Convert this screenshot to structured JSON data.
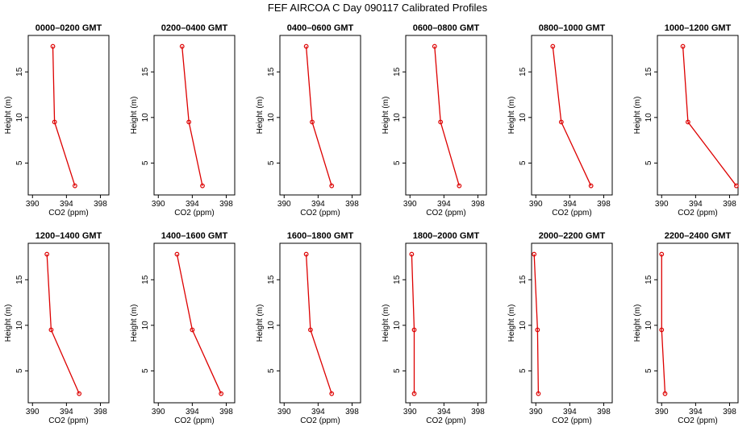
{
  "title": "FEF AIRCOA C  Day 090117  Calibrated Profiles",
  "colors": {
    "series": "#dd0000",
    "axis": "#000000"
  },
  "chart_data": [
    {
      "type": "line",
      "title": "0000–0200 GMT",
      "xlabel": "CO2 (ppm)",
      "ylabel": "Height (m)",
      "xlim": [
        389.5,
        399
      ],
      "ylim": [
        1.5,
        19
      ],
      "xticks": [
        390,
        394,
        398
      ],
      "yticks": [
        5,
        10,
        15
      ],
      "x": [
        395.0,
        392.6,
        392.4
      ],
      "y": [
        2.5,
        9.5,
        17.8
      ]
    },
    {
      "type": "line",
      "title": "0200–0400 GMT",
      "xlabel": "CO2 (ppm)",
      "ylabel": "Height (m)",
      "xlim": [
        389.5,
        399
      ],
      "ylim": [
        1.5,
        19
      ],
      "xticks": [
        390,
        394,
        398
      ],
      "yticks": [
        5,
        10,
        15
      ],
      "x": [
        395.2,
        393.6,
        392.8
      ],
      "y": [
        2.5,
        9.5,
        17.8
      ]
    },
    {
      "type": "line",
      "title": "0400–0600 GMT",
      "xlabel": "CO2 (ppm)",
      "ylabel": "Height (m)",
      "xlim": [
        389.5,
        399
      ],
      "ylim": [
        1.5,
        19
      ],
      "xticks": [
        390,
        394,
        398
      ],
      "yticks": [
        5,
        10,
        15
      ],
      "x": [
        395.6,
        393.3,
        392.6
      ],
      "y": [
        2.5,
        9.5,
        17.8
      ]
    },
    {
      "type": "line",
      "title": "0600–0800 GMT",
      "xlabel": "CO2 (ppm)",
      "ylabel": "Height (m)",
      "xlim": [
        389.5,
        399
      ],
      "ylim": [
        1.5,
        19
      ],
      "xticks": [
        390,
        394,
        398
      ],
      "yticks": [
        5,
        10,
        15
      ],
      "x": [
        395.8,
        393.6,
        392.9
      ],
      "y": [
        2.5,
        9.5,
        17.8
      ]
    },
    {
      "type": "line",
      "title": "0800–1000 GMT",
      "xlabel": "CO2 (ppm)",
      "ylabel": "Height (m)",
      "xlim": [
        389.5,
        399
      ],
      "ylim": [
        1.5,
        19
      ],
      "xticks": [
        390,
        394,
        398
      ],
      "yticks": [
        5,
        10,
        15
      ],
      "x": [
        396.5,
        393.0,
        392.0
      ],
      "y": [
        2.5,
        9.5,
        17.8
      ]
    },
    {
      "type": "line",
      "title": "1000–1200 GMT",
      "xlabel": "CO2 (ppm)",
      "ylabel": "Height (m)",
      "xlim": [
        389.5,
        399
      ],
      "ylim": [
        1.5,
        19
      ],
      "xticks": [
        390,
        394,
        398
      ],
      "yticks": [
        5,
        10,
        15
      ],
      "x": [
        398.8,
        393.1,
        392.5
      ],
      "y": [
        2.5,
        9.5,
        17.8
      ]
    },
    {
      "type": "line",
      "title": "1200–1400 GMT",
      "xlabel": "CO2 (ppm)",
      "ylabel": "Height (m)",
      "xlim": [
        389.5,
        399
      ],
      "ylim": [
        1.5,
        19
      ],
      "xticks": [
        390,
        394,
        398
      ],
      "yticks": [
        5,
        10,
        15
      ],
      "x": [
        395.5,
        392.2,
        391.7
      ],
      "y": [
        2.5,
        9.5,
        17.8
      ]
    },
    {
      "type": "line",
      "title": "1400–1600 GMT",
      "xlabel": "CO2 (ppm)",
      "ylabel": "Height (m)",
      "xlim": [
        389.5,
        399
      ],
      "ylim": [
        1.5,
        19
      ],
      "xticks": [
        390,
        394,
        398
      ],
      "yticks": [
        5,
        10,
        15
      ],
      "x": [
        397.4,
        394.0,
        392.2
      ],
      "y": [
        2.5,
        9.5,
        17.8
      ]
    },
    {
      "type": "line",
      "title": "1600–1800 GMT",
      "xlabel": "CO2 (ppm)",
      "ylabel": "Height (m)",
      "xlim": [
        389.5,
        399
      ],
      "ylim": [
        1.5,
        19
      ],
      "xticks": [
        390,
        394,
        398
      ],
      "yticks": [
        5,
        10,
        15
      ],
      "x": [
        395.6,
        393.1,
        392.6
      ],
      "y": [
        2.5,
        9.5,
        17.8
      ]
    },
    {
      "type": "line",
      "title": "1800–2000 GMT",
      "xlabel": "CO2 (ppm)",
      "ylabel": "Height (m)",
      "xlim": [
        389.5,
        399
      ],
      "ylim": [
        1.5,
        19
      ],
      "xticks": [
        390,
        394,
        398
      ],
      "yticks": [
        5,
        10,
        15
      ],
      "x": [
        390.5,
        390.5,
        390.2
      ],
      "y": [
        2.5,
        9.5,
        17.8
      ]
    },
    {
      "type": "line",
      "title": "2000–2200 GMT",
      "xlabel": "CO2 (ppm)",
      "ylabel": "Height (m)",
      "xlim": [
        389.5,
        399
      ],
      "ylim": [
        1.5,
        19
      ],
      "xticks": [
        390,
        394,
        398
      ],
      "yticks": [
        5,
        10,
        15
      ],
      "x": [
        390.3,
        390.2,
        389.8
      ],
      "y": [
        2.5,
        9.5,
        17.8
      ]
    },
    {
      "type": "line",
      "title": "2200–2400 GMT",
      "xlabel": "CO2 (ppm)",
      "ylabel": "Height (m)",
      "xlim": [
        389.5,
        399
      ],
      "ylim": [
        1.5,
        19
      ],
      "xticks": [
        390,
        394,
        398
      ],
      "yticks": [
        5,
        10,
        15
      ],
      "x": [
        390.4,
        390.0,
        390.0
      ],
      "y": [
        2.5,
        9.5,
        17.8
      ]
    }
  ]
}
